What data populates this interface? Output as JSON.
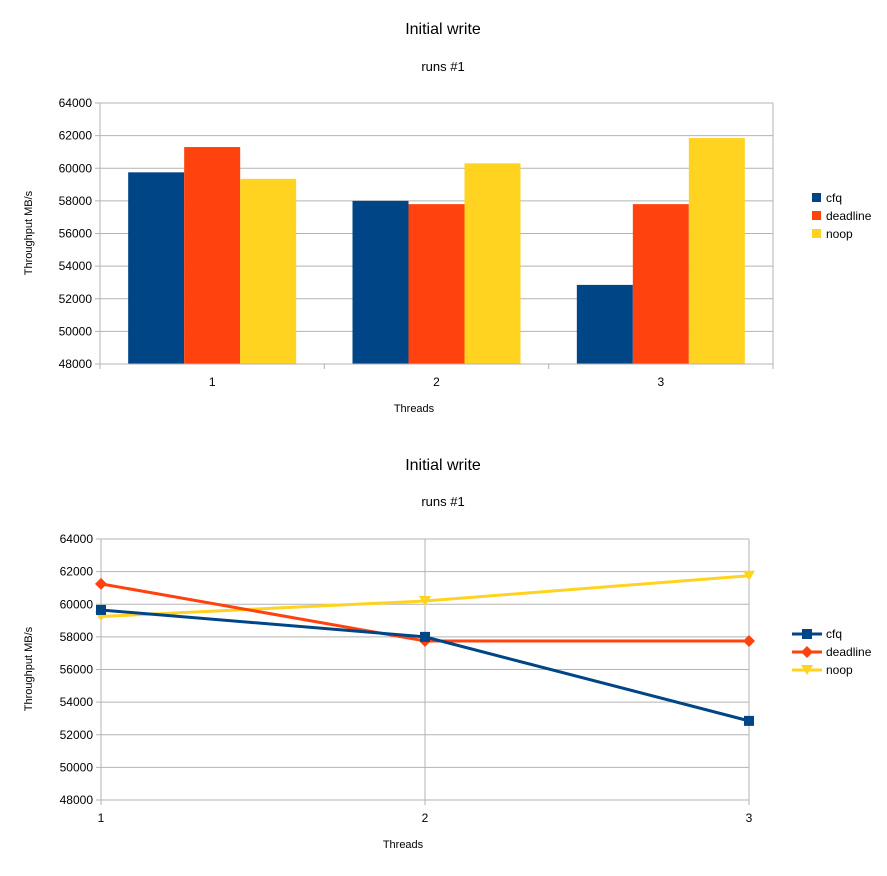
{
  "chart_data": [
    {
      "type": "bar",
      "title": "Initial write",
      "subtitle": "runs #1",
      "xlabel": "Threads",
      "ylabel": "Throughput MB/s",
      "categories": [
        "1",
        "2",
        "3"
      ],
      "ylim": [
        48000,
        64000
      ],
      "yticks": [
        "48000",
        "50000",
        "52000",
        "54000",
        "56000",
        "58000",
        "60000",
        "62000",
        "64000"
      ],
      "grid": true,
      "legend_position": "right",
      "series": [
        {
          "name": "cfq",
          "color": "#004586",
          "values": [
            59750,
            58000,
            52850
          ]
        },
        {
          "name": "deadline",
          "color": "#ff420e",
          "values": [
            61300,
            57800,
            57800
          ]
        },
        {
          "name": "noop",
          "color": "#ffd320",
          "values": [
            59350,
            60300,
            61850
          ]
        }
      ]
    },
    {
      "type": "line",
      "title": "Initial write",
      "subtitle": "runs #1",
      "xlabel": "Threads",
      "ylabel": "Throughput MB/s",
      "categories": [
        "1",
        "2",
        "3"
      ],
      "ylim": [
        48000,
        64000
      ],
      "yticks": [
        "48000",
        "50000",
        "52000",
        "54000",
        "56000",
        "58000",
        "60000",
        "62000",
        "64000"
      ],
      "grid": true,
      "legend_position": "right",
      "series": [
        {
          "name": "cfq",
          "color": "#004586",
          "marker": "square",
          "values": [
            59650,
            58000,
            52850
          ]
        },
        {
          "name": "deadline",
          "color": "#ff420e",
          "marker": "diamond",
          "values": [
            61250,
            57750,
            57750
          ]
        },
        {
          "name": "noop",
          "color": "#ffd320",
          "marker": "triangle-down",
          "values": [
            59250,
            60200,
            61750
          ]
        }
      ]
    }
  ]
}
